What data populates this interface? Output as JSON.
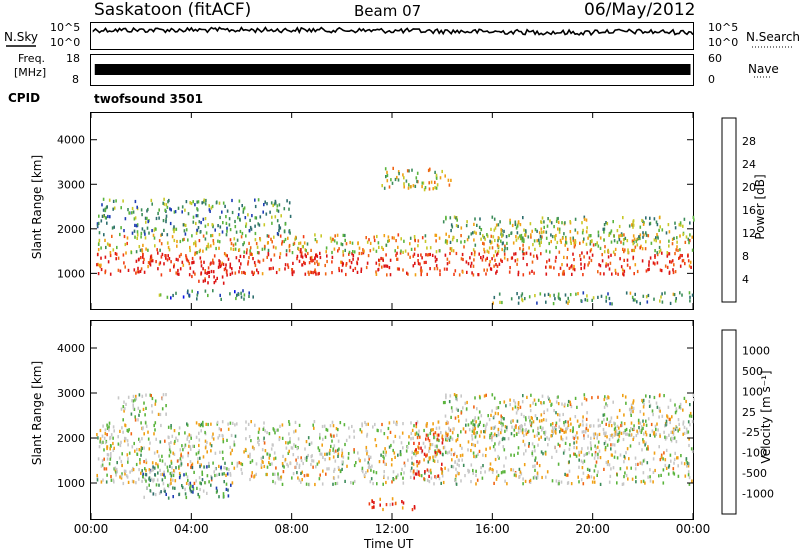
{
  "header": {
    "radar_title": "Saskatoon (fitACF)",
    "beam": "Beam 07",
    "date": "06/May/2012"
  },
  "noise_panel": {
    "left_label": "N.Sky",
    "right_label": "N.Search",
    "tick_top": "10^5",
    "tick_bottom": "10^0",
    "right_tick_top": "10^5",
    "right_tick_bottom": "10^0"
  },
  "freq_panel": {
    "left_label_1": "Freq.",
    "left_label_2": "[MHz]",
    "right_label": "Nave",
    "tick_top": "18",
    "tick_bottom": "8",
    "right_tick_top": "60",
    "right_tick_bottom": "0"
  },
  "cpid_panel": {
    "label": "CPID",
    "program": "twofsound 3501"
  },
  "x_axis": {
    "label": "Time UT",
    "ticks": [
      "00:00",
      "04:00",
      "08:00",
      "12:00",
      "16:00",
      "20:00",
      "00:00"
    ]
  },
  "colors": {
    "power_scale": [
      "#0a14e6",
      "#1e3cb4",
      "#2d6e6e",
      "#3c8c5a",
      "#5ab43c",
      "#c8c828",
      "#f0a014",
      "#f06414",
      "#f03c14",
      "#dc1414"
    ],
    "velocity_scale": [
      "#1e3cb4",
      "#2d6e6e",
      "#3c8c5a",
      "#5ab43c",
      "#c8c8c8",
      "#c8c8c8",
      "#f0a014",
      "#f06414",
      "#f03c14",
      "#dc1414"
    ]
  },
  "chart_data": [
    {
      "type": "heatmap",
      "name": "power",
      "ylabel": "Slant Range [km]",
      "yticks": [
        "1000",
        "2000",
        "3000",
        "4000"
      ],
      "ylim": [
        200,
        4600
      ],
      "xlim": [
        0,
        24
      ],
      "colorbar_label": "Power [dB]",
      "colorbar_ticks": [
        "4",
        "8",
        "12",
        "16",
        "20",
        "24",
        "28"
      ],
      "bands": [
        {
          "t0": 0.2,
          "t1": 24,
          "r0": 1000,
          "r1": 1500,
          "level": 0.9
        },
        {
          "t0": 0.2,
          "t1": 24,
          "r0": 1500,
          "r1": 1900,
          "level": 0.6
        },
        {
          "t0": 0.2,
          "t1": 8,
          "r0": 1900,
          "r1": 2700,
          "level": 0.35
        },
        {
          "t0": 3.8,
          "t1": 5.4,
          "r0": 800,
          "r1": 1300,
          "level": 1.0
        },
        {
          "t0": 8.0,
          "t1": 9.0,
          "r0": 1100,
          "r1": 1600,
          "level": 1.0
        },
        {
          "t0": 11.5,
          "t1": 14.5,
          "r0": 2900,
          "r1": 3400,
          "level": 0.55
        },
        {
          "t0": 14.0,
          "t1": 24,
          "r0": 1700,
          "r1": 2300,
          "level": 0.45
        },
        {
          "t0": 2.5,
          "t1": 6.5,
          "r0": 450,
          "r1": 650,
          "level": 0.3
        },
        {
          "t0": 16.0,
          "t1": 24,
          "r0": 350,
          "r1": 600,
          "level": 0.4
        }
      ]
    },
    {
      "type": "heatmap",
      "name": "velocity",
      "ylabel": "Slant Range [km]",
      "yticks": [
        "1000",
        "2000",
        "3000",
        "4000"
      ],
      "ylim": [
        200,
        4600
      ],
      "xlim": [
        0,
        24
      ],
      "colorbar_label": "Velocity [m s⁻¹]",
      "colorbar_ticks": [
        "1000",
        "500",
        "100",
        "25",
        "-25",
        "-100",
        "-500",
        "-1000"
      ],
      "bands": [
        {
          "t0": 0.2,
          "t1": 24,
          "r0": 1000,
          "r1": 2400,
          "level": 0.5
        },
        {
          "t0": 2.0,
          "t1": 5.6,
          "r0": 700,
          "r1": 1400,
          "level": 0.25
        },
        {
          "t0": 12.8,
          "t1": 14.0,
          "r0": 1100,
          "r1": 2400,
          "level": 0.8
        },
        {
          "t0": 11.0,
          "t1": 13.0,
          "r0": 400,
          "r1": 700,
          "level": 0.8
        },
        {
          "t0": 14.0,
          "t1": 24,
          "r0": 2000,
          "r1": 3000,
          "level": 0.5
        },
        {
          "t0": 1.0,
          "t1": 3.0,
          "r0": 2400,
          "r1": 3000,
          "level": 0.5
        }
      ]
    }
  ]
}
